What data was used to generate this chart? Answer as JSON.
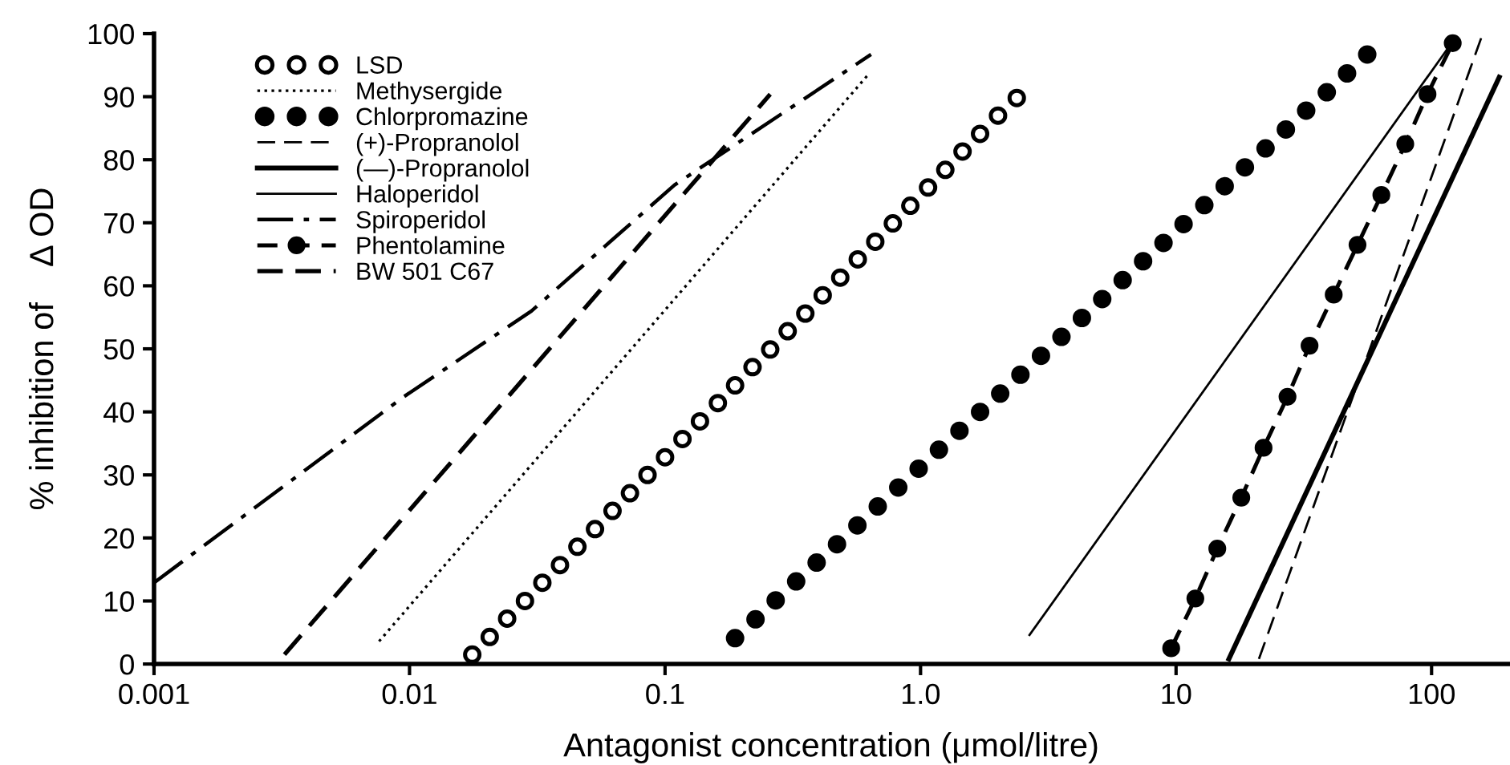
{
  "chart_data": {
    "type": "line",
    "xlabel": "Antagonist concentration (μmol/litre)",
    "ylabel": "% inhibition of    Δ OD",
    "log": "x",
    "xlim": [
      0.001,
      200
    ],
    "xticks": [
      0.001,
      0.01,
      0.1,
      {
        "value": 1,
        "label": "1.0"
      },
      10,
      100
    ],
    "ylim": [
      0,
      100
    ],
    "yticks": [
      0,
      10,
      20,
      30,
      40,
      50,
      60,
      70,
      80,
      90,
      100
    ],
    "grid": false,
    "legend": "top left",
    "series": [
      {
        "name": "LSD",
        "type": "scatter",
        "marker": "circle",
        "color": "#000000",
        "x": [
          0.0176,
          0.0206,
          0.0241,
          0.0283,
          0.0331,
          0.0388,
          0.0454,
          0.0532,
          0.0623,
          0.0729,
          0.0854,
          0.1,
          0.117,
          0.137,
          0.161,
          0.188,
          0.22,
          0.258,
          0.302,
          0.354,
          0.414,
          0.485,
          0.568,
          0.665,
          0.779,
          0.912,
          1.07,
          1.25,
          1.46,
          1.71,
          2.01,
          2.38
        ],
        "values": [
          1.5,
          4.3,
          7.2,
          10.0,
          12.9,
          15.7,
          18.6,
          21.4,
          24.3,
          27.1,
          30.0,
          32.8,
          35.7,
          38.5,
          41.4,
          44.2,
          47.1,
          49.9,
          52.8,
          55.6,
          58.5,
          61.3,
          64.2,
          67.0,
          69.9,
          72.7,
          75.6,
          78.4,
          81.3,
          84.1,
          87.0,
          89.8
        ]
      },
      {
        "name": "Methysergide",
        "line_style": "dotted",
        "color": "#000000",
        "x": [
          0.0076,
          0.63
        ],
        "values": [
          3.6,
          93.7
        ]
      },
      {
        "name": "Chlorpromazine",
        "type": "scatter",
        "marker": "circle",
        "color": "#000000",
        "x": [
          0.188,
          0.226,
          0.271,
          0.326,
          0.392,
          0.471,
          0.566,
          0.68,
          0.818,
          0.983,
          1.18,
          1.42,
          1.71,
          2.05,
          2.46,
          2.96,
          3.56,
          4.28,
          5.14,
          6.18,
          7.43,
          8.93,
          10.7,
          12.9,
          15.5,
          18.6,
          22.4,
          26.9,
          32.3,
          38.9,
          46.7,
          56.0
        ],
        "values": [
          4.1,
          7.1,
          10.1,
          13.1,
          16.1,
          19.0,
          22.0,
          25.0,
          28.0,
          31.0,
          34.0,
          37.0,
          40.0,
          42.9,
          45.9,
          48.9,
          51.9,
          54.9,
          57.9,
          60.9,
          63.9,
          66.8,
          69.8,
          72.8,
          75.8,
          78.8,
          81.8,
          84.8,
          87.8,
          90.7,
          93.7,
          96.7
        ]
      },
      {
        "name": "(+)-Propranolol",
        "line_style": "dashed",
        "color": "#000000",
        "x": [
          21.1,
          157
        ],
        "values": [
          0.8,
          99.5
        ]
      },
      {
        "name": "(—)-Propranolol",
        "line_style": "solid",
        "color": "#000000",
        "x": [
          16.1,
          184
        ],
        "values": [
          0.8,
          93.1
        ]
      },
      {
        "name": "Haloperidol",
        "line_style": "solid",
        "color": "#000000",
        "x": [
          2.67,
          115
        ],
        "values": [
          4.6,
          97.5
        ]
      },
      {
        "name": "Spiroperidol",
        "line_style": "dashdot",
        "color": "#000000",
        "x": [
          0.001,
          0.0095,
          0.03,
          0.109,
          0.64
        ],
        "values": [
          12.9,
          42.4,
          56.0,
          76.0,
          96.7
        ]
      },
      {
        "name": "Phentolamine",
        "line_style": "dashed",
        "marker": "circle",
        "color": "#000000",
        "x": [
          9.57,
          11.9,
          14.5,
          18.0,
          22.0,
          27.3,
          33.3,
          41.4,
          51.3,
          63.6,
          78.9,
          96.4,
          121
        ],
        "values": [
          2.5,
          10.4,
          18.3,
          26.4,
          34.3,
          42.4,
          50.5,
          58.6,
          66.5,
          74.4,
          82.5,
          90.4,
          98.5
        ]
      },
      {
        "name": "BW 501 C67",
        "line_style": "dashed",
        "color": "#000000",
        "x": [
          0.00324,
          0.258
        ],
        "values": [
          1.5,
          90.4
        ]
      }
    ]
  }
}
